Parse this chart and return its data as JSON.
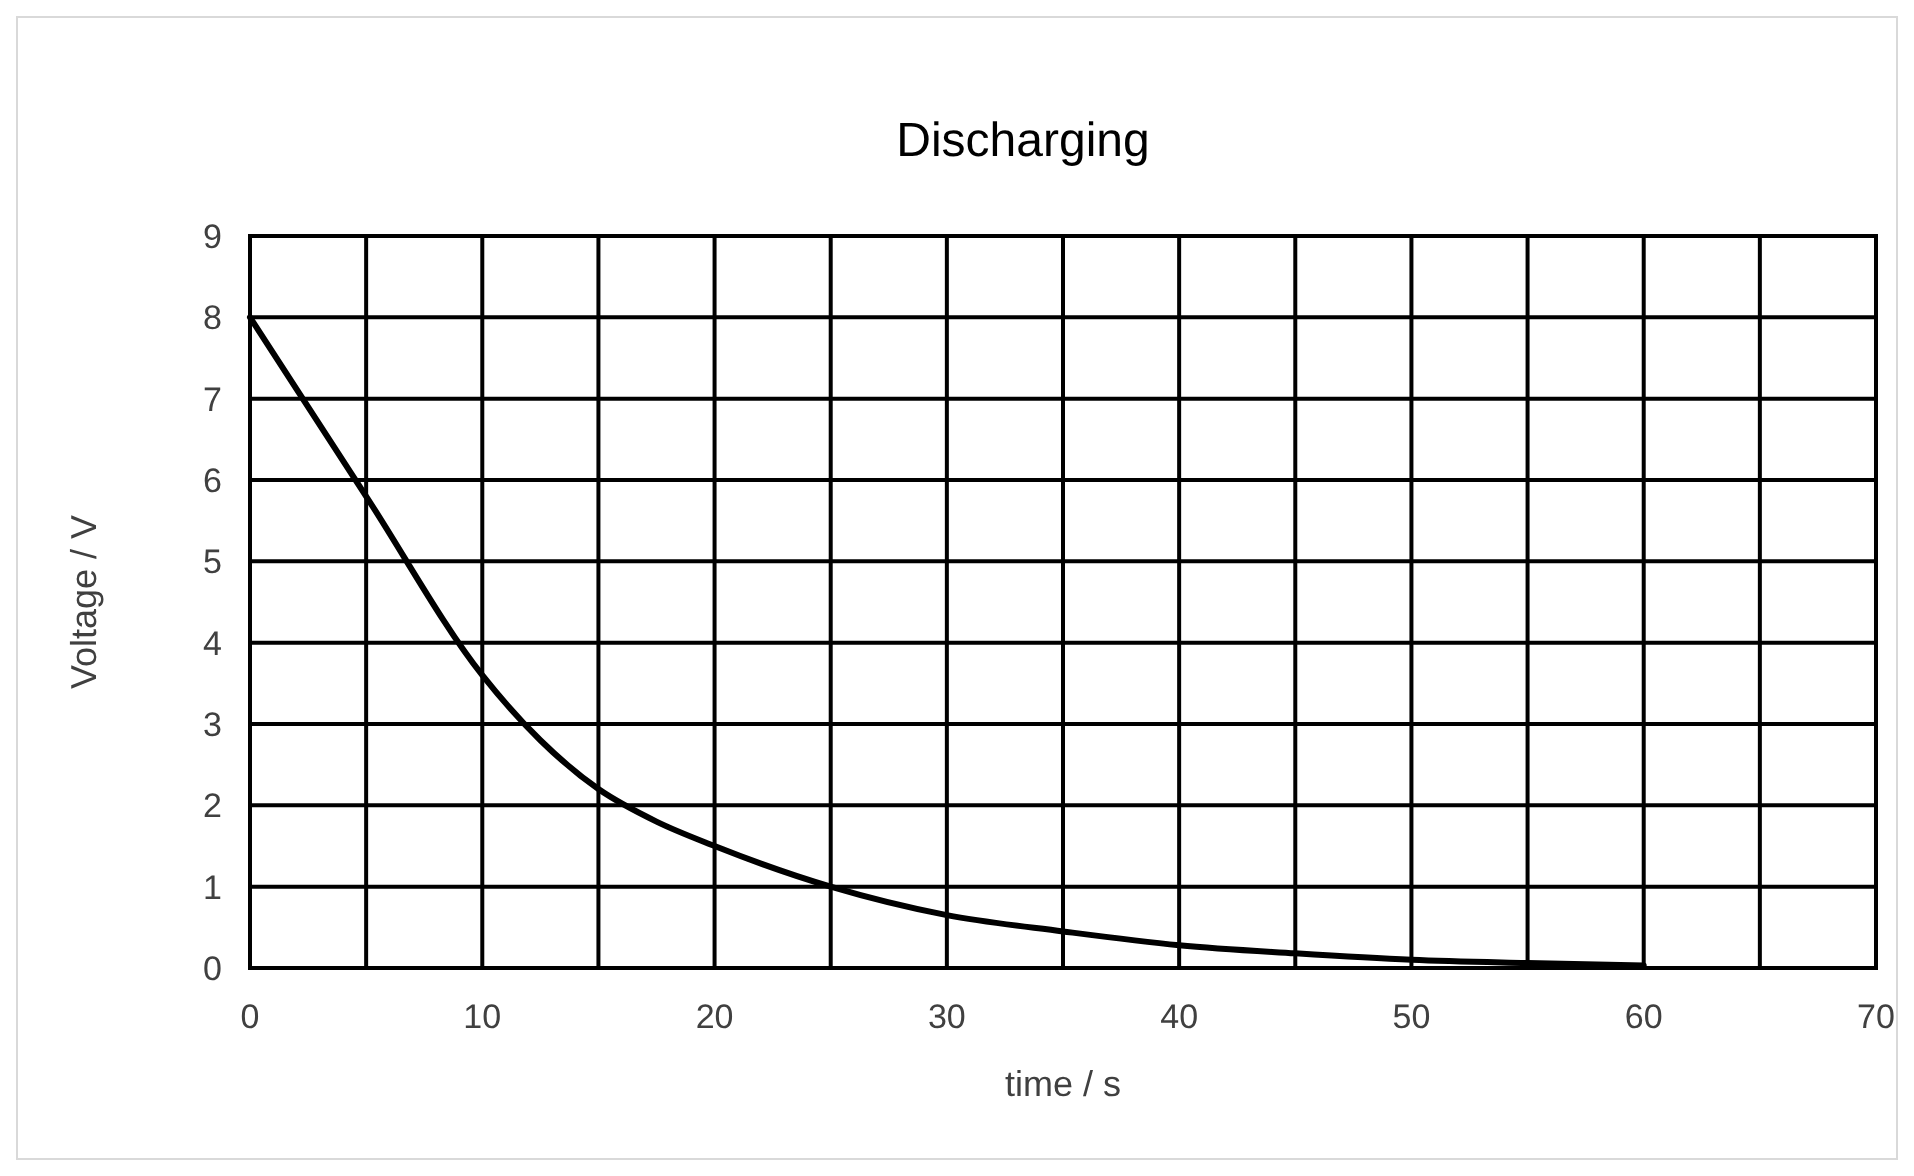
{
  "chart_data": {
    "type": "line",
    "title": "Discharging",
    "xlabel": "time / s",
    "ylabel": "Voltage / V",
    "x": [
      0,
      5,
      10,
      12.5,
      15,
      17.5,
      20,
      25,
      30,
      35,
      40,
      45,
      50,
      55,
      60
    ],
    "series": [
      {
        "color": "#000000",
        "values": [
          8,
          5.8,
          3.6,
          2.8,
          2.2,
          1.8,
          1.5,
          1.0,
          0.65,
          0.45,
          0.28,
          0.18,
          0.1,
          0.06,
          0.03
        ]
      }
    ],
    "xlim": [
      0,
      70
    ],
    "ylim": [
      0,
      9
    ],
    "xticks": [
      0,
      {
        "value": 5,
        "label": null
      },
      10,
      {
        "value": 15,
        "label": null
      },
      20,
      {
        "value": 25,
        "label": null
      },
      30,
      {
        "value": 35,
        "label": null
      },
      40,
      {
        "value": 45,
        "label": null
      },
      50,
      {
        "value": 55,
        "label": null
      },
      60,
      {
        "value": 65,
        "label": null
      },
      70
    ],
    "yticks": [
      0,
      1,
      2,
      3,
      4,
      5,
      6,
      7,
      8,
      9
    ],
    "grid": true,
    "marker": "none",
    "line_style": "solid"
  }
}
